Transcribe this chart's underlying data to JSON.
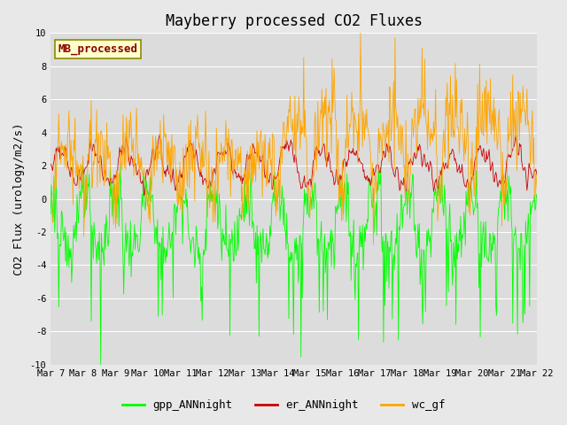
{
  "title": "Mayberry processed CO2 Fluxes",
  "ylabel": "CO2 Flux (urology/m2/s)",
  "ylim": [
    -10,
    10
  ],
  "yticks": [
    -10,
    -8,
    -6,
    -4,
    -2,
    0,
    2,
    4,
    6,
    8,
    10
  ],
  "colors": {
    "gpp": "#00FF00",
    "er": "#CC0000",
    "wc": "#FFA500"
  },
  "legend_labels": [
    "gpp_ANNnight",
    "er_ANNnight",
    "wc_gf"
  ],
  "inset_label": "MB_processed",
  "inset_label_color": "#8B0000",
  "inset_box_facecolor": "#FFFFCC",
  "inset_box_edgecolor": "#8B8B00",
  "bg_color": "#E8E8E8",
  "plot_bg_color": "#DCDCDC",
  "grid_color": "#FFFFFF",
  "font_family": "monospace",
  "title_fontsize": 12,
  "label_fontsize": 9,
  "tick_fontsize": 7.5,
  "legend_fontsize": 9,
  "linewidth": 0.6
}
